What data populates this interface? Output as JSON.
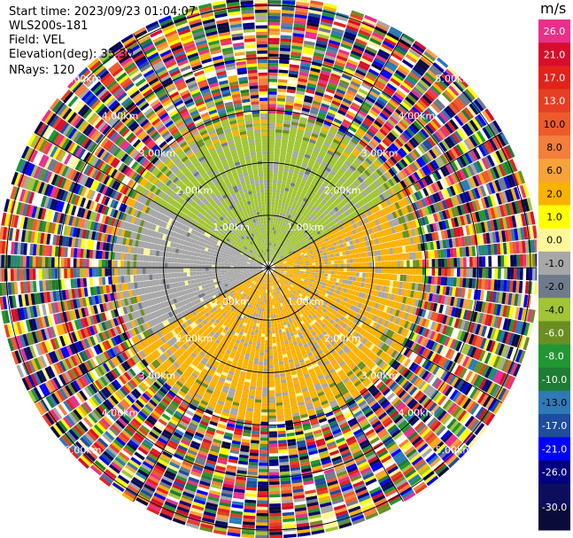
{
  "header": {
    "start_time": "Start time: 2023/09/23 01:04:07",
    "instrument": "WLS200s-181",
    "field": "Field: VEL",
    "elevation": "Elevation(deg): 35.30",
    "nrays": "NRays: 120"
  },
  "colorbar": {
    "title": "m/s",
    "ticks": [
      "26.0",
      "21.0",
      "17.0",
      "13.0",
      "10.0",
      "8.0",
      "6.0",
      "2.0",
      "1.0",
      "0.0",
      "-1.0",
      "-2.0",
      "-4.0",
      "-6.0",
      "-8.0",
      "-10.0",
      "-13.0",
      "-17.0",
      "-21.0",
      "-26.0",
      "-30.0"
    ],
    "colors": [
      "#e8308a",
      "#d70e2b",
      "#e2231c",
      "#e63f24",
      "#ee5a2c",
      "#f47e3c",
      "#f9a23a",
      "#fab200",
      "#ffff00",
      "#fff799",
      "#a7a7a7",
      "#6f7b8c",
      "#a1c535",
      "#6b8e23",
      "#229632",
      "#1f7c33",
      "#2d7ab5",
      "#1e4c9e",
      "#0000ff",
      "#000080",
      "#0d0d5e",
      "#0b0b3a"
    ]
  },
  "chart_data": {
    "type": "ppi-polar",
    "field": "VEL",
    "unit": "m/s",
    "elevation_deg": 35.3,
    "nrays": 120,
    "range_rings_km": [
      1.0,
      2.0,
      3.0,
      4.0,
      5.0
    ],
    "range_ring_labels": [
      "1.00km",
      "2.00km",
      "3.00km",
      "4.00km",
      "5.00km"
    ],
    "max_range_km": 5.15,
    "patterns": {
      "inner_disc_km": 1.5,
      "valid_data_km": 3.0,
      "noise_beyond_km": 3.1
    },
    "velocity_regions": [
      {
        "sector_deg": [
          300,
          60
        ],
        "range_km": [
          0,
          2.9
        ],
        "value": -2.0
      },
      {
        "sector_deg": [
          60,
          120
        ],
        "range_km": [
          0,
          2.9
        ],
        "value": 1.5
      },
      {
        "sector_deg": [
          120,
          240
        ],
        "range_km": [
          0,
          2.9
        ],
        "value": 1.5
      },
      {
        "sector_deg": [
          240,
          300
        ],
        "range_km": [
          0,
          2.9
        ],
        "value": -0.5
      }
    ]
  }
}
